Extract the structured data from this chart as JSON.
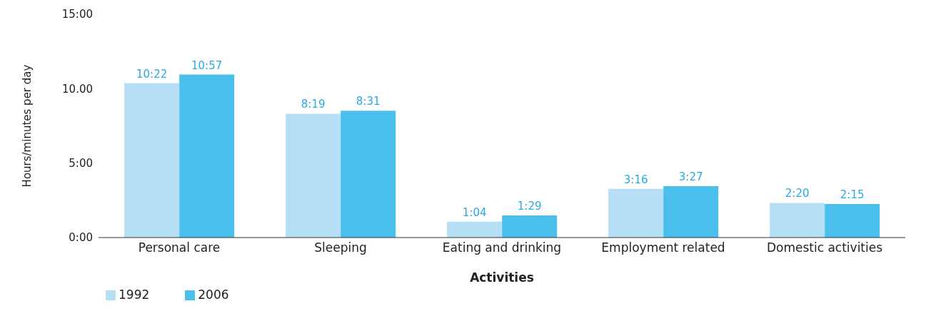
{
  "chart_data": {
    "type": "bar",
    "xlabel": "Activities",
    "ylabel": "Hours/minutes per day",
    "categories": [
      "Personal care",
      "Sleeping",
      "Eating and drinking",
      "Employment related",
      "Domestic activities"
    ],
    "series": [
      {
        "name": "1992",
        "color": "#b6dff5",
        "values": [
          10.37,
          8.32,
          1.07,
          3.27,
          2.33
        ],
        "value_labels": [
          "10:22",
          "8:19",
          "1:04",
          "3:16",
          "2:20"
        ]
      },
      {
        "name": "2006",
        "color": "#4bbfec",
        "values": [
          10.95,
          8.52,
          1.48,
          3.45,
          2.25
        ],
        "value_labels": [
          "10:57",
          "8:31",
          "1:29",
          "3:27",
          "2:15"
        ]
      }
    ],
    "ylim": [
      0,
      15
    ],
    "yticks": [
      {
        "value": 0,
        "label": "0:00"
      },
      {
        "value": 5,
        "label": "5:00"
      },
      {
        "value": 10,
        "label": "10.00"
      },
      {
        "value": 15,
        "label": "15:00"
      }
    ],
    "grid": false,
    "legend": "bottom left"
  }
}
